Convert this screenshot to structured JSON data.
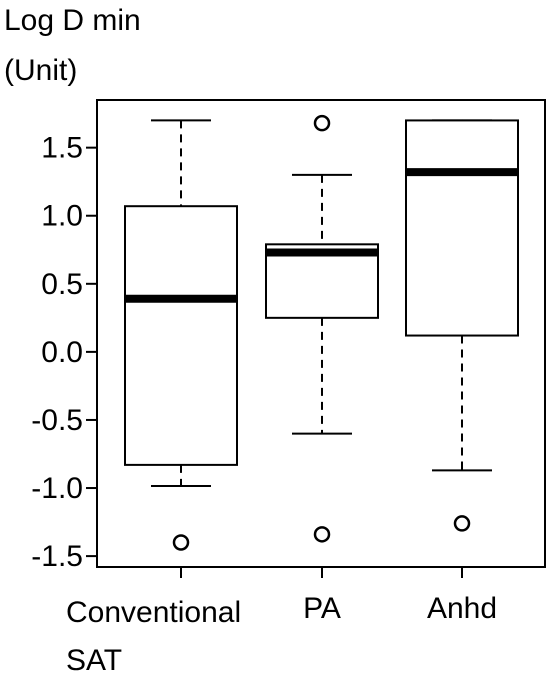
{
  "chart_data": {
    "type": "box",
    "y_label": [
      "Log D min",
      "(Unit)"
    ],
    "categories": [
      "Conventional SAT",
      "PA",
      "Anhd"
    ],
    "boxes": [
      {
        "whisker_low": -0.985,
        "q1": -0.83,
        "median": 0.39,
        "q3": 1.07,
        "whisker_high": 1.7,
        "outliers": [
          -1.4
        ]
      },
      {
        "whisker_low": -0.6,
        "q1": 0.25,
        "median": 0.73,
        "q3": 0.79,
        "whisker_high": 1.3,
        "outliers": [
          1.68,
          -1.34
        ]
      },
      {
        "whisker_low": -0.87,
        "q1": 0.12,
        "median": 1.32,
        "q3": 1.7,
        "whisker_high": 1.7,
        "outliers": [
          -1.26
        ]
      }
    ],
    "color": "#000000",
    "ylim": [
      -1.58,
      1.85
    ],
    "yticks": [
      1.5,
      {
        "value": 1.0,
        "label": "1.0"
      },
      0.5,
      {
        "value": 0.0,
        "label": "0.0"
      },
      -0.5,
      {
        "value": -1.0,
        "label": "-1.0"
      },
      -1.5
    ]
  }
}
